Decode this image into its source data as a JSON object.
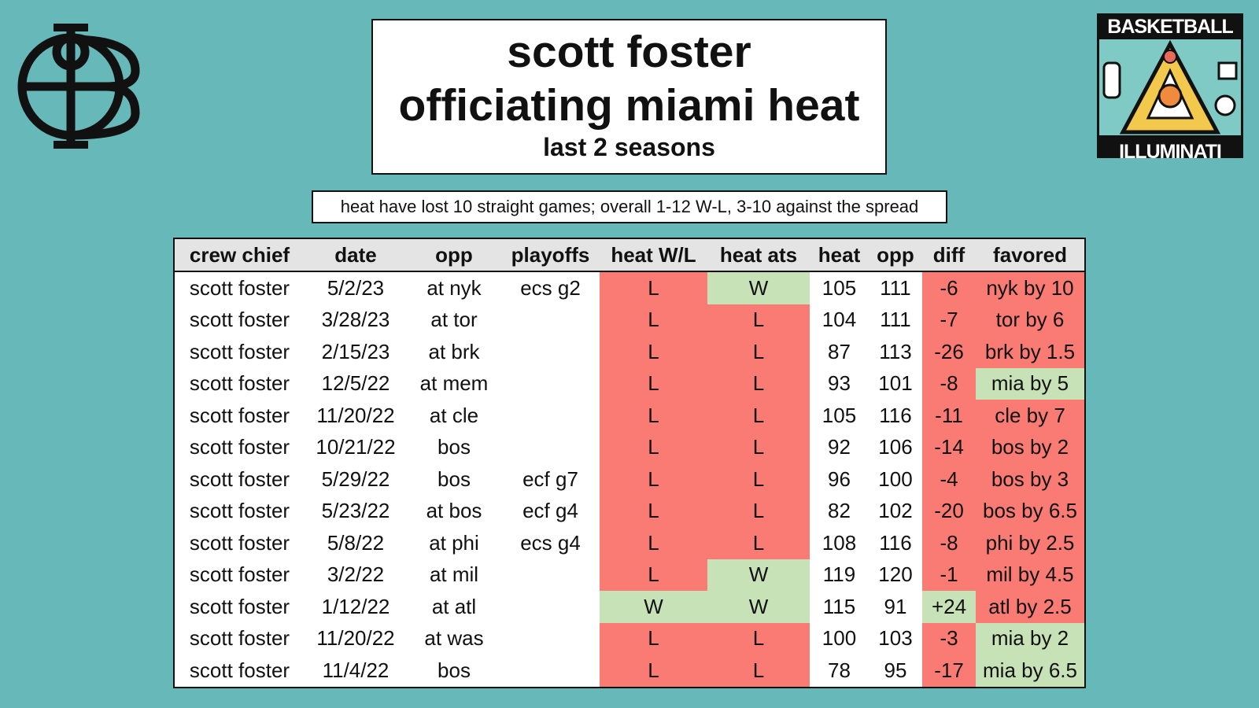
{
  "title": {
    "line1": "scott foster",
    "line2": "officiating miami heat",
    "subtitle": "last 2 seasons"
  },
  "note": "heat have lost 10 straight games; overall 1-12 W-L, 3-10 against the spread",
  "badge": {
    "top_text": "BASKETBALL",
    "bottom_text": "ILLUMINATI"
  },
  "colors": {
    "background": "#67b8b8",
    "loss": "#fa7b74",
    "win": "#c8e2b8",
    "header": "#e4e4e4"
  },
  "table": {
    "columns": [
      "crew chief",
      "date",
      "opp",
      "playoffs",
      "heat W/L",
      "heat ats",
      "heat",
      "opp",
      "diff",
      "favored"
    ],
    "rows": [
      {
        "crew": "scott foster",
        "date": "5/2/23",
        "opp": "at nyk",
        "playoffs": "ecs g2",
        "wl": "L",
        "ats": "W",
        "heat": "105",
        "opp_score": "111",
        "diff": "-6",
        "favored": "nyk by 10",
        "diff_status": "loss",
        "favored_status": "loss"
      },
      {
        "crew": "scott foster",
        "date": "3/28/23",
        "opp": "at tor",
        "playoffs": "",
        "wl": "L",
        "ats": "L",
        "heat": "104",
        "opp_score": "111",
        "diff": "-7",
        "favored": "tor by 6",
        "diff_status": "loss",
        "favored_status": "loss"
      },
      {
        "crew": "scott foster",
        "date": "2/15/23",
        "opp": "at brk",
        "playoffs": "",
        "wl": "L",
        "ats": "L",
        "heat": "87",
        "opp_score": "113",
        "diff": "-26",
        "favored": "brk by 1.5",
        "diff_status": "loss",
        "favored_status": "loss"
      },
      {
        "crew": "scott foster",
        "date": "12/5/22",
        "opp": "at mem",
        "playoffs": "",
        "wl": "L",
        "ats": "L",
        "heat": "93",
        "opp_score": "101",
        "diff": "-8",
        "favored": "mia by 5",
        "diff_status": "loss",
        "favored_status": "win"
      },
      {
        "crew": "scott foster",
        "date": "11/20/22",
        "opp": "at cle",
        "playoffs": "",
        "wl": "L",
        "ats": "L",
        "heat": "105",
        "opp_score": "116",
        "diff": "-11",
        "favored": "cle by 7",
        "diff_status": "loss",
        "favored_status": "loss"
      },
      {
        "crew": "scott foster",
        "date": "10/21/22",
        "opp": "bos",
        "playoffs": "",
        "wl": "L",
        "ats": "L",
        "heat": "92",
        "opp_score": "106",
        "diff": "-14",
        "favored": "bos by 2",
        "diff_status": "loss",
        "favored_status": "loss"
      },
      {
        "crew": "scott foster",
        "date": "5/29/22",
        "opp": "bos",
        "playoffs": "ecf g7",
        "wl": "L",
        "ats": "L",
        "heat": "96",
        "opp_score": "100",
        "diff": "-4",
        "favored": "bos by 3",
        "diff_status": "loss",
        "favored_status": "loss"
      },
      {
        "crew": "scott foster",
        "date": "5/23/22",
        "opp": "at bos",
        "playoffs": "ecf g4",
        "wl": "L",
        "ats": "L",
        "heat": "82",
        "opp_score": "102",
        "diff": "-20",
        "favored": "bos by 6.5",
        "diff_status": "loss",
        "favored_status": "loss"
      },
      {
        "crew": "scott foster",
        "date": "5/8/22",
        "opp": "at phi",
        "playoffs": "ecs g4",
        "wl": "L",
        "ats": "L",
        "heat": "108",
        "opp_score": "116",
        "diff": "-8",
        "favored": "phi by 2.5",
        "diff_status": "loss",
        "favored_status": "loss"
      },
      {
        "crew": "scott foster",
        "date": "3/2/22",
        "opp": "at mil",
        "playoffs": "",
        "wl": "L",
        "ats": "W",
        "heat": "119",
        "opp_score": "120",
        "diff": "-1",
        "favored": "mil by 4.5",
        "diff_status": "loss",
        "favored_status": "loss"
      },
      {
        "crew": "scott foster",
        "date": "1/12/22",
        "opp": "at atl",
        "playoffs": "",
        "wl": "W",
        "ats": "W",
        "heat": "115",
        "opp_score": "91",
        "diff": "+24",
        "favored": "atl by 2.5",
        "diff_status": "win",
        "favored_status": "loss"
      },
      {
        "crew": "scott foster",
        "date": "11/20/22",
        "opp": "at was",
        "playoffs": "",
        "wl": "L",
        "ats": "L",
        "heat": "100",
        "opp_score": "103",
        "diff": "-3",
        "favored": "mia by 2",
        "diff_status": "loss",
        "favored_status": "win"
      },
      {
        "crew": "scott foster",
        "date": "11/4/22",
        "opp": "bos",
        "playoffs": "",
        "wl": "L",
        "ats": "L",
        "heat": "78",
        "opp_score": "95",
        "diff": "-17",
        "favored": "mia by 6.5",
        "diff_status": "loss",
        "favored_status": "win"
      }
    ]
  }
}
